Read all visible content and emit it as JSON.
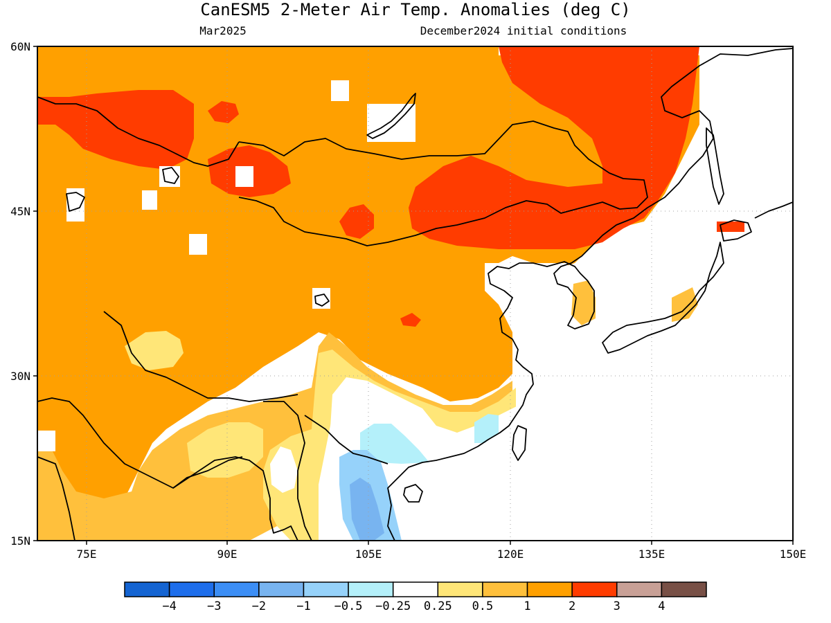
{
  "title": "CanESM5 2-Meter Air Temp. Anomalies (deg C)",
  "subtitle_left": "Mar2025",
  "subtitle_right": "December2024 initial conditions",
  "lon_labels": [
    "75E",
    "90E",
    "105E",
    "120E",
    "135E",
    "150E"
  ],
  "lat_labels": [
    "60N",
    "45N",
    "30N",
    "15N"
  ],
  "colorbar": {
    "colors": [
      "#1464d2",
      "#1e6eeb",
      "#3c8ef5",
      "#78b4f0",
      "#96d2fa",
      "#b4f0fa",
      "#ffffff",
      "#ffe678",
      "#ffc03c",
      "#ffa000",
      "#ff3c00",
      "#c8a096",
      "#785046"
    ],
    "labels": [
      "−4",
      "−3",
      "−2",
      "−1",
      "−0.5",
      "−0.25",
      "0.25",
      "0.5",
      "1",
      "2",
      "3",
      "4"
    ]
  }
}
